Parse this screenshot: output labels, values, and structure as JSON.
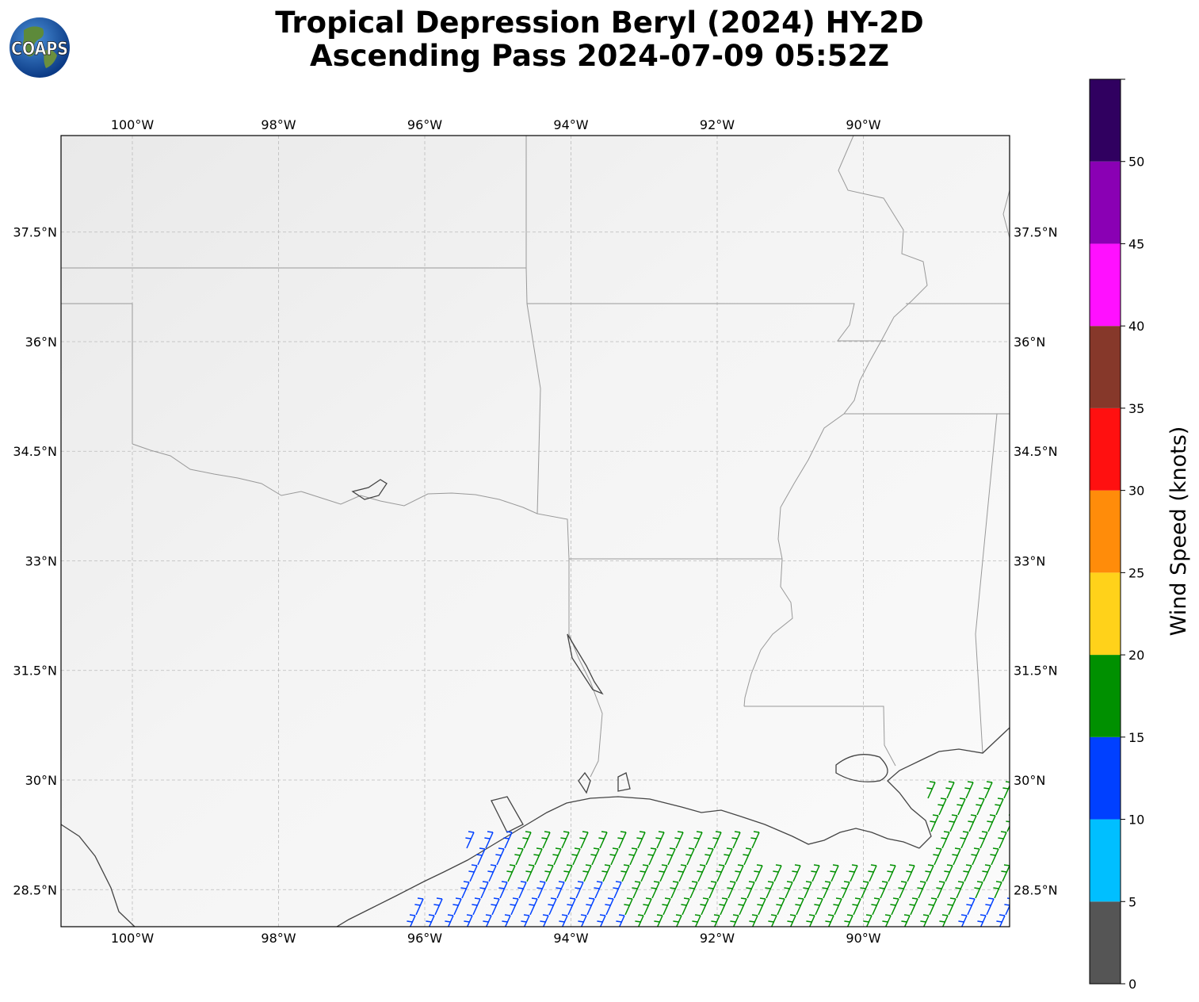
{
  "title_line1": "Tropical Depression Beryl (2024) HY-2D",
  "title_line2": "Ascending Pass 2024-07-09 05:52Z",
  "logo_text": "COAPS",
  "map": {
    "lon_labels": [
      "100°W",
      "98°W",
      "96°W",
      "94°W",
      "92°W",
      "90°W"
    ],
    "lon_values": [
      -100,
      -98,
      -96,
      -94,
      -92,
      -90
    ],
    "lat_labels": [
      "37.5°N",
      "36°N",
      "34.5°N",
      "33°N",
      "31.5°N",
      "30°N",
      "28.5°N"
    ],
    "lat_values": [
      37.5,
      36,
      34.5,
      33,
      31.5,
      30,
      28.5
    ]
  },
  "colorbar": {
    "label": "Wind Speed (knots)",
    "ticks": [
      "0",
      "5",
      "10",
      "15",
      "20",
      "25",
      "30",
      "35",
      "40",
      "45",
      "50"
    ],
    "colors": [
      "#555555",
      "#00bfff",
      "#0040ff",
      "#009000",
      "#ffd21a",
      "#ff8c0a",
      "#ff1010",
      "#86382a",
      "#ff10ff",
      "#8a00b4",
      "#300060"
    ]
  },
  "colors": {
    "land": "#f4f4f4",
    "coast": "#444444",
    "border": "#999999",
    "grid": "#bbbbbb"
  }
}
